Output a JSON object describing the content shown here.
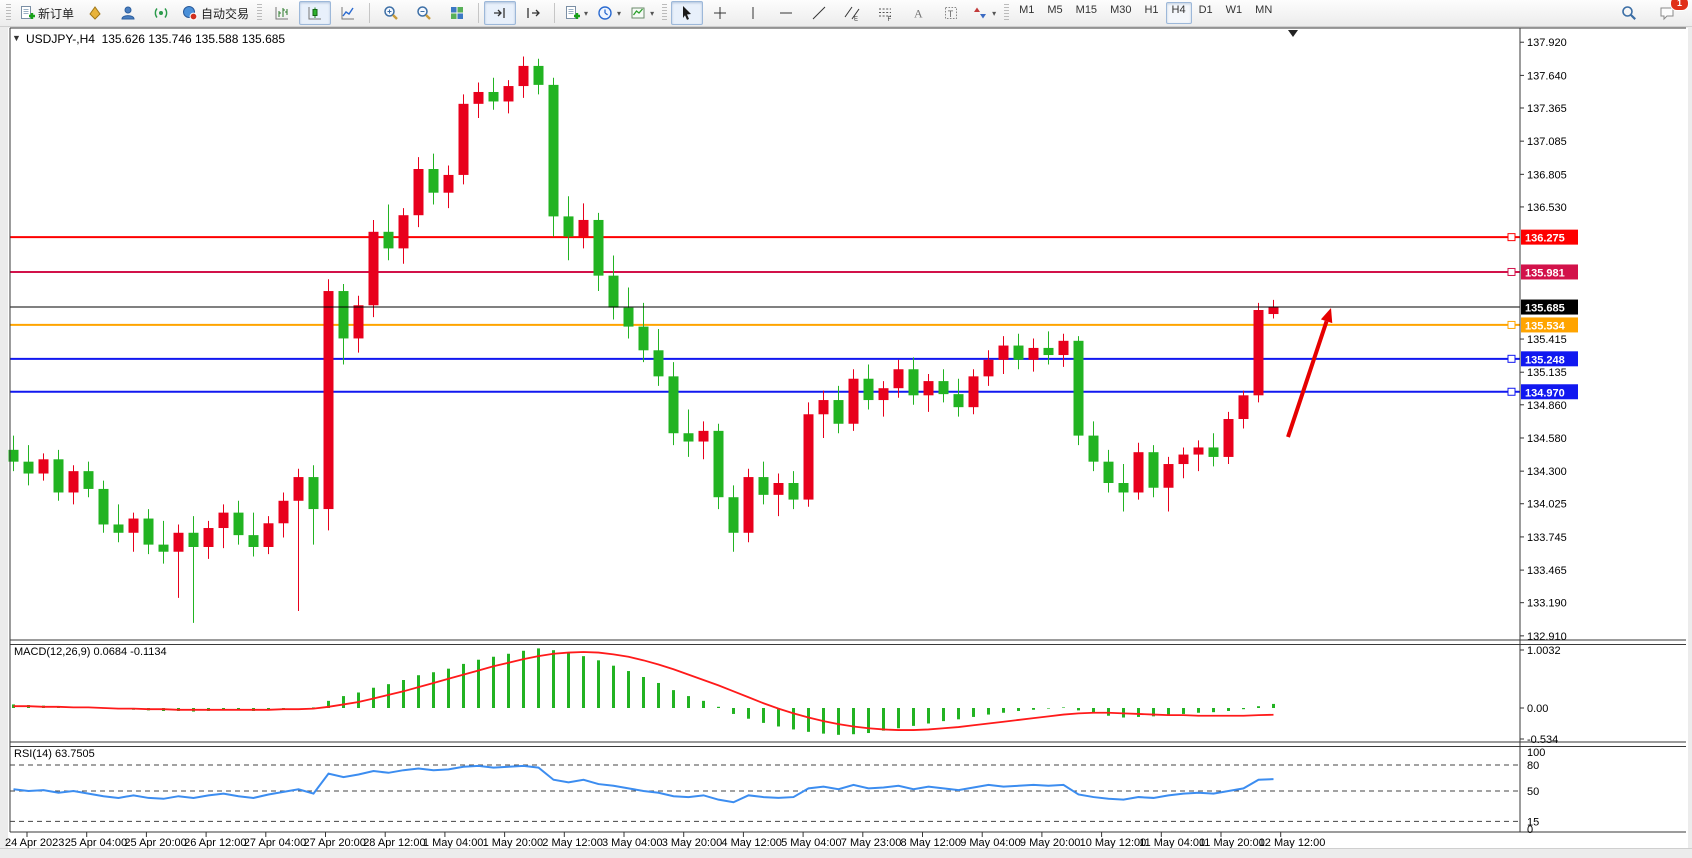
{
  "toolbar": {
    "new_order": "新订单",
    "autotrading": "自动交易",
    "timeframes": [
      "M1",
      "M5",
      "M15",
      "M30",
      "H1",
      "H4",
      "D1",
      "W1",
      "MN"
    ],
    "active_timeframe": "H4",
    "chat_badge": "1"
  },
  "header": {
    "title": "USDJPY-,H4  135.626 135.746 135.588 135.685"
  },
  "indicators": {
    "macd_label": "MACD(12,26,9) 0.0684 -0.1134",
    "rsi_label": "RSI(14) 63.7505"
  },
  "chart_data": {
    "type": "candlestick",
    "symbol_period": "USDJPY-,H4",
    "current_bar": {
      "open": 135.626,
      "high": 135.746,
      "low": 135.588,
      "close": 135.685
    },
    "bid": {
      "price": 135.685,
      "label": "135.685",
      "color": "#000000"
    },
    "colors": {
      "bull": "#e8001c",
      "bear": "#22b322",
      "macd_histogram": "#22b322",
      "macd_signal": "#ff1a1a",
      "rsi_line": "#3c8df0",
      "arrow": "#e60000"
    },
    "price_ticks": [
      "137.920",
      "137.640",
      "137.365",
      "137.085",
      "136.805",
      "136.530",
      "135.415",
      "135.135",
      "134.860",
      "134.580",
      "134.300",
      "134.025",
      "133.745",
      "133.465",
      "133.190",
      "132.910"
    ],
    "levels": [
      {
        "price": 136.275,
        "label": "136.275",
        "color": "#fe0000",
        "width": 2
      },
      {
        "price": 135.981,
        "label": "135.981",
        "color": "#d2124a",
        "width": 2
      },
      {
        "price": 135.534,
        "label": "135.534",
        "color": "#ffa400",
        "width": 2
      },
      {
        "price": 135.248,
        "label": "135.248",
        "color": "#1118f0",
        "width": 2
      },
      {
        "price": 134.97,
        "label": "134.970",
        "color": "#1118f0",
        "width": 2
      }
    ],
    "candles": [
      [
        134.48,
        134.6,
        134.3,
        134.38
      ],
      [
        134.38,
        134.52,
        134.18,
        134.28
      ],
      [
        134.28,
        134.45,
        134.22,
        134.4
      ],
      [
        134.4,
        134.48,
        134.05,
        134.12
      ],
      [
        134.12,
        134.35,
        134.02,
        134.3
      ],
      [
        134.3,
        134.38,
        134.08,
        134.15
      ],
      [
        134.15,
        134.22,
        133.78,
        133.85
      ],
      [
        133.85,
        134.02,
        133.7,
        133.78
      ],
      [
        133.78,
        133.95,
        133.62,
        133.9
      ],
      [
        133.9,
        133.98,
        133.6,
        133.68
      ],
      [
        133.68,
        133.88,
        133.52,
        133.62
      ],
      [
        133.62,
        133.85,
        133.23,
        133.78
      ],
      [
        133.78,
        133.92,
        133.02,
        133.66
      ],
      [
        133.66,
        133.88,
        133.56,
        133.82
      ],
      [
        133.82,
        134.02,
        133.65,
        133.95
      ],
      [
        133.95,
        134.05,
        133.68,
        133.76
      ],
      [
        133.76,
        133.95,
        133.58,
        133.66
      ],
      [
        133.66,
        133.92,
        133.6,
        133.86
      ],
      [
        133.86,
        134.12,
        133.74,
        134.05
      ],
      [
        134.05,
        134.32,
        133.12,
        134.25
      ],
      [
        134.25,
        134.35,
        133.68,
        133.98
      ],
      [
        133.98,
        135.92,
        133.8,
        135.82
      ],
      [
        135.82,
        135.88,
        135.2,
        135.42
      ],
      [
        135.42,
        135.78,
        135.3,
        135.7
      ],
      [
        135.7,
        136.42,
        135.6,
        136.32
      ],
      [
        136.32,
        136.55,
        136.08,
        136.18
      ],
      [
        136.18,
        136.52,
        136.05,
        136.46
      ],
      [
        136.46,
        136.95,
        136.36,
        136.85
      ],
      [
        136.85,
        136.98,
        136.55,
        136.65
      ],
      [
        136.65,
        136.88,
        136.52,
        136.8
      ],
      [
        136.8,
        137.48,
        136.72,
        137.4
      ],
      [
        137.4,
        137.58,
        137.28,
        137.5
      ],
      [
        137.5,
        137.62,
        137.35,
        137.42
      ],
      [
        137.42,
        137.6,
        137.32,
        137.55
      ],
      [
        137.55,
        137.8,
        137.45,
        137.72
      ],
      [
        137.72,
        137.78,
        137.48,
        137.56
      ],
      [
        137.56,
        137.62,
        136.28,
        136.45
      ],
      [
        136.45,
        136.62,
        136.08,
        136.28
      ],
      [
        136.28,
        136.56,
        136.18,
        136.42
      ],
      [
        136.42,
        136.48,
        135.82,
        135.95
      ],
      [
        135.95,
        136.12,
        135.58,
        135.68
      ],
      [
        135.68,
        135.85,
        135.42,
        135.52
      ],
      [
        135.52,
        135.72,
        135.22,
        135.32
      ],
      [
        135.32,
        135.5,
        135.02,
        135.1
      ],
      [
        135.1,
        135.22,
        134.52,
        134.62
      ],
      [
        134.62,
        134.82,
        134.42,
        134.55
      ],
      [
        134.55,
        134.72,
        134.4,
        134.64
      ],
      [
        134.64,
        134.7,
        133.98,
        134.08
      ],
      [
        134.08,
        134.18,
        133.62,
        133.78
      ],
      [
        133.78,
        134.32,
        133.7,
        134.25
      ],
      [
        134.25,
        134.38,
        134.02,
        134.1
      ],
      [
        134.1,
        134.28,
        133.92,
        134.2
      ],
      [
        134.2,
        134.3,
        133.98,
        134.06
      ],
      [
        134.06,
        134.88,
        134.0,
        134.78
      ],
      [
        134.78,
        134.98,
        134.58,
        134.9
      ],
      [
        134.9,
        135.02,
        134.62,
        134.7
      ],
      [
        134.7,
        135.16,
        134.64,
        135.08
      ],
      [
        135.08,
        135.2,
        134.82,
        134.9
      ],
      [
        134.9,
        135.06,
        134.76,
        135.0
      ],
      [
        135.0,
        135.24,
        134.92,
        135.16
      ],
      [
        135.16,
        135.26,
        134.86,
        134.94
      ],
      [
        134.94,
        135.12,
        134.8,
        135.06
      ],
      [
        135.06,
        135.16,
        134.88,
        134.95
      ],
      [
        134.95,
        135.08,
        134.76,
        134.84
      ],
      [
        134.84,
        135.16,
        134.78,
        135.1
      ],
      [
        135.1,
        135.32,
        135.02,
        135.24
      ],
      [
        135.24,
        135.44,
        135.12,
        135.36
      ],
      [
        135.36,
        135.46,
        135.16,
        135.24
      ],
      [
        135.24,
        135.42,
        135.14,
        135.34
      ],
      [
        135.34,
        135.48,
        135.2,
        135.28
      ],
      [
        135.28,
        135.46,
        135.18,
        135.4
      ],
      [
        135.4,
        135.44,
        134.52,
        134.6
      ],
      [
        134.6,
        134.72,
        134.3,
        134.38
      ],
      [
        134.38,
        134.48,
        134.12,
        134.2
      ],
      [
        134.2,
        134.36,
        133.96,
        134.12
      ],
      [
        134.12,
        134.54,
        134.06,
        134.46
      ],
      [
        134.46,
        134.52,
        134.08,
        134.16
      ],
      [
        134.16,
        134.42,
        133.96,
        134.36
      ],
      [
        134.36,
        134.5,
        134.24,
        134.44
      ],
      [
        134.44,
        134.56,
        134.3,
        134.5
      ],
      [
        134.5,
        134.62,
        134.34,
        134.42
      ],
      [
        134.42,
        134.8,
        134.36,
        134.74
      ],
      [
        134.74,
        134.98,
        134.66,
        134.94
      ],
      [
        134.94,
        135.72,
        134.88,
        135.66
      ],
      [
        135.626,
        135.746,
        135.588,
        135.685
      ]
    ],
    "macd": {
      "label": "MACD(12,26,9)",
      "main_value": 0.0684,
      "signal_value": -0.1134,
      "scale": [
        {
          "label": "1.0032",
          "v": 1.0032
        },
        {
          "label": "0.00",
          "v": 0
        },
        {
          "label": "-0.534",
          "v": -0.534
        }
      ],
      "histogram": [
        0.06,
        0.05,
        0.04,
        0.03,
        0.02,
        0.01,
        -0.01,
        -0.02,
        -0.03,
        -0.04,
        -0.05,
        -0.05,
        -0.06,
        -0.05,
        -0.04,
        -0.04,
        -0.05,
        -0.04,
        -0.02,
        0.0,
        0.01,
        0.12,
        0.2,
        0.26,
        0.34,
        0.4,
        0.47,
        0.55,
        0.6,
        0.66,
        0.74,
        0.81,
        0.86,
        0.91,
        0.96,
        1.0,
        0.97,
        0.92,
        0.87,
        0.8,
        0.71,
        0.62,
        0.52,
        0.42,
        0.3,
        0.2,
        0.12,
        0.02,
        -0.1,
        -0.18,
        -0.25,
        -0.31,
        -0.36,
        -0.4,
        -0.43,
        -0.45,
        -0.44,
        -0.42,
        -0.38,
        -0.34,
        -0.3,
        -0.26,
        -0.22,
        -0.19,
        -0.15,
        -0.11,
        -0.08,
        -0.05,
        -0.03,
        -0.01,
        0.01,
        -0.04,
        -0.09,
        -0.13,
        -0.16,
        -0.15,
        -0.14,
        -0.12,
        -0.1,
        -0.08,
        -0.07,
        -0.05,
        -0.02,
        0.03,
        0.0684
      ],
      "signal": [
        0.03,
        0.03,
        0.02,
        0.02,
        0.01,
        0.01,
        0.0,
        -0.01,
        -0.01,
        -0.02,
        -0.02,
        -0.03,
        -0.03,
        -0.03,
        -0.03,
        -0.03,
        -0.03,
        -0.03,
        -0.02,
        -0.02,
        -0.01,
        0.02,
        0.06,
        0.1,
        0.16,
        0.22,
        0.28,
        0.35,
        0.42,
        0.49,
        0.56,
        0.63,
        0.7,
        0.76,
        0.82,
        0.87,
        0.91,
        0.93,
        0.94,
        0.93,
        0.9,
        0.86,
        0.8,
        0.73,
        0.65,
        0.56,
        0.47,
        0.38,
        0.28,
        0.18,
        0.08,
        -0.01,
        -0.09,
        -0.16,
        -0.22,
        -0.27,
        -0.31,
        -0.34,
        -0.36,
        -0.37,
        -0.37,
        -0.36,
        -0.34,
        -0.32,
        -0.29,
        -0.26,
        -0.23,
        -0.2,
        -0.17,
        -0.14,
        -0.11,
        -0.09,
        -0.08,
        -0.08,
        -0.09,
        -0.1,
        -0.11,
        -0.12,
        -0.12,
        -0.13,
        -0.13,
        -0.13,
        -0.13,
        -0.12,
        -0.1134
      ]
    },
    "rsi": {
      "label": "RSI(14)",
      "value": 63.7505,
      "scale": [
        {
          "label": "100",
          "v": 100
        },
        {
          "label": "80",
          "v": 80
        },
        {
          "label": "50",
          "v": 50
        },
        {
          "label": "15",
          "v": 15
        },
        {
          "label": "0",
          "v": 0
        }
      ],
      "dashed_levels": [
        80,
        50,
        15
      ],
      "values": [
        52,
        50,
        51,
        48,
        50,
        47,
        44,
        42,
        45,
        42,
        41,
        44,
        42,
        45,
        47,
        44,
        42,
        46,
        49,
        52,
        47,
        70,
        66,
        69,
        73,
        71,
        74,
        76,
        74,
        75,
        78,
        79,
        77,
        78,
        79,
        77,
        63,
        60,
        63,
        58,
        56,
        53,
        50,
        48,
        44,
        43,
        45,
        40,
        37,
        45,
        43,
        42,
        43,
        53,
        55,
        52,
        57,
        53,
        54,
        56,
        52,
        55,
        53,
        51,
        54,
        57,
        55,
        56,
        57,
        56,
        57,
        46,
        43,
        41,
        40,
        43,
        42,
        45,
        47,
        48,
        47,
        50,
        53,
        63,
        63.75
      ]
    },
    "time_labels": [
      "24 Apr 2023",
      "25 Apr 04:00",
      "25 Apr 20:00",
      "26 Apr 12:00",
      "27 Apr 04:00",
      "27 Apr 20:00",
      "28 Apr 12:00",
      "1 May 04:00",
      "1 May 20:00",
      "2 May 12:00",
      "3 May 04:00",
      "3 May 20:00",
      "4 May 12:00",
      "5 May 04:00",
      "7 May 23:00",
      "8 May 12:00",
      "9 May 04:00",
      "9 May 20:00",
      "10 May 12:00",
      "11 May 04:00",
      "11 May 20:00",
      "12 May 12:00"
    ],
    "annotation_arrow": {
      "from": [
        1288,
        437
      ],
      "to": [
        1331,
        308
      ],
      "color": "#e60000"
    }
  }
}
